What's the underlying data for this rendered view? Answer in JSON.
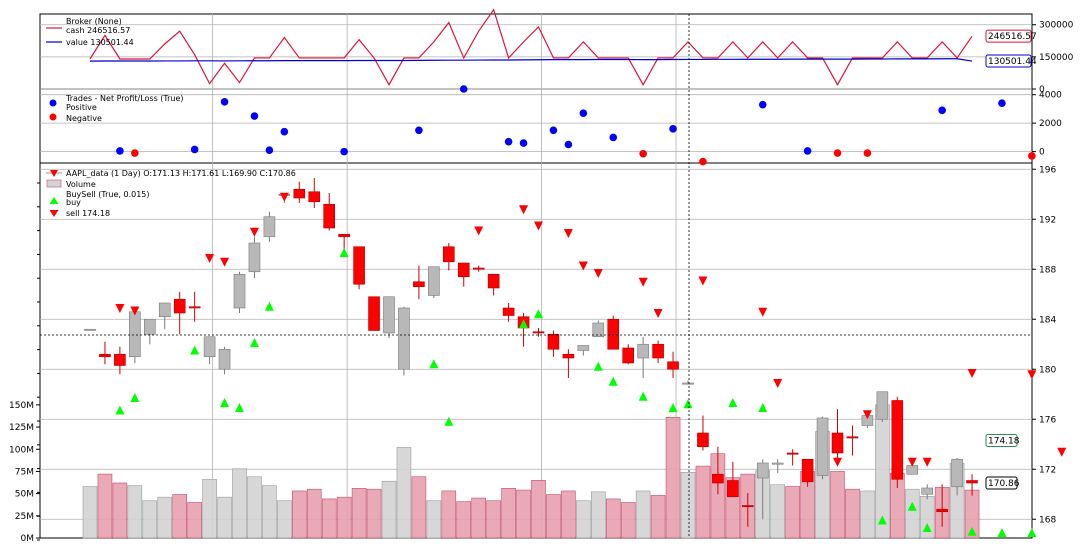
{
  "chart_data": [
    {
      "type": "line",
      "panel": "broker",
      "legend": {
        "title": "Broker (None)",
        "entries": [
          "cash 246516.57",
          "value 130501.44"
        ]
      },
      "ylim": [
        0,
        350000
      ],
      "yticks": [
        0,
        150000,
        300000
      ],
      "ytick_labels": [
        "0",
        "150000",
        "300000"
      ],
      "series": [
        {
          "name": "cash",
          "color": "#dc143c",
          "values": [
            140000,
            250000,
            140000,
            140000,
            140000,
            210000,
            270000,
            160000,
            25000,
            120000,
            30000,
            145000,
            145000,
            240000,
            145000,
            145000,
            145000,
            145000,
            230000,
            145000,
            20000,
            145000,
            145000,
            220000,
            310000,
            145000,
            270000,
            370000,
            145000,
            220000,
            290000,
            145000,
            145000,
            220000,
            145000,
            145000,
            145000,
            20000,
            145000,
            145000,
            220000,
            145000,
            145000,
            220000,
            145000,
            220000,
            145000,
            220000,
            145000,
            145000,
            20000,
            145000,
            145000,
            145000,
            220000,
            145000,
            145000,
            220000,
            145000,
            246516.57
          ]
        },
        {
          "name": "value",
          "color": "#0000cd",
          "values": [
            130000,
            130500,
            130500,
            130500,
            130500,
            131000,
            131000,
            131500,
            131500,
            131000,
            131500,
            132000,
            132000,
            132500,
            132500,
            132500,
            132500,
            132500,
            133000,
            133000,
            133000,
            133000,
            133500,
            134000,
            134500,
            134500,
            135000,
            135500,
            135500,
            136000,
            136500,
            137000,
            137000,
            137000,
            137500,
            137500,
            137500,
            137000,
            137000,
            137500,
            138000,
            138000,
            138500,
            138500,
            139000,
            139000,
            139000,
            139500,
            139500,
            139500,
            139500,
            139500,
            140000,
            140000,
            140500,
            140500,
            140500,
            141000,
            141000,
            130501.44
          ]
        }
      ],
      "last_labels": [
        "246516.57",
        "130501.44"
      ]
    },
    {
      "type": "scatter",
      "panel": "trades",
      "legend": {
        "title": "Trades - Net Profit/Loss (True)",
        "entries": [
          "Positive",
          "Negative"
        ]
      },
      "ylim": [
        -800,
        4400
      ],
      "yticks": [
        0,
        2000,
        4000
      ],
      "ytick_labels": [
        "0",
        "2000",
        "4000"
      ],
      "positive": [
        [
          2,
          50
        ],
        [
          7,
          150
        ],
        [
          9,
          3500
        ],
        [
          11,
          2500
        ],
        [
          12,
          100
        ],
        [
          13,
          1400
        ],
        [
          17,
          0
        ],
        [
          22,
          1500
        ],
        [
          25,
          4400
        ],
        [
          28,
          700
        ],
        [
          29,
          600
        ],
        [
          31,
          1500
        ],
        [
          32,
          500
        ],
        [
          33,
          2700
        ],
        [
          35,
          1000
        ],
        [
          39,
          1600
        ],
        [
          45,
          3300
        ],
        [
          48,
          50
        ],
        [
          57,
          2900
        ],
        [
          61,
          3400
        ]
      ],
      "negative": [
        [
          3,
          -100
        ],
        [
          37,
          -150
        ],
        [
          41,
          -700
        ],
        [
          50,
          -100
        ],
        [
          52,
          -100
        ],
        [
          63,
          -300
        ]
      ]
    },
    {
      "type": "candlestick",
      "panel": "price",
      "legend": {
        "entries": [
          "AAPL_data (1 Day) O:171.13 H:171.61 L:169.90 C:170.86",
          "Volume",
          "BuySell (True, 0.015)",
          "buy",
          "sell 174.18"
        ]
      },
      "ylim": [
        166.5,
        196.5
      ],
      "yticks": [
        168,
        172,
        176,
        180,
        184,
        188,
        192,
        196
      ],
      "ytick_labels": [
        "168",
        "172",
        "176",
        "180",
        "184",
        "188",
        "192",
        "196"
      ],
      "volume_ylim": [
        0,
        160000000
      ],
      "volume_ticks": [
        0,
        25000000,
        50000000,
        75000000,
        100000000,
        125000000,
        150000000
      ],
      "volume_tick_labels": [
        "0M",
        "25M",
        "50M",
        "75M",
        "100M",
        "125M",
        "150M"
      ],
      "ohlcv": [
        [
          183.2,
          183.2,
          183.2,
          183.2,
          58
        ],
        [
          181.2,
          182.2,
          180.4,
          181.0,
          72
        ],
        [
          181.2,
          181.8,
          179.6,
          180.3,
          62
        ],
        [
          181.0,
          184.6,
          180.5,
          184.6,
          59
        ],
        [
          182.8,
          184.0,
          182.0,
          184.0,
          42
        ],
        [
          184.2,
          185.3,
          183.2,
          185.3,
          46
        ],
        [
          185.6,
          186.2,
          182.8,
          184.5,
          49
        ],
        [
          185.0,
          186.2,
          183.8,
          184.9,
          40
        ],
        [
          181.0,
          182.6,
          180.4,
          182.6,
          66
        ],
        [
          180.0,
          181.8,
          179.6,
          181.6,
          46
        ],
        [
          184.9,
          187.8,
          184.5,
          187.6,
          78
        ],
        [
          187.8,
          190.6,
          187.3,
          190.1,
          69
        ],
        [
          190.6,
          192.6,
          190.2,
          192.2,
          59
        ],
        [
          193.9,
          194.0,
          193.3,
          194.0,
          42
        ],
        [
          194.4,
          195.0,
          193.3,
          193.7,
          53
        ],
        [
          194.2,
          195.3,
          192.9,
          193.4,
          55
        ],
        [
          193.2,
          194.1,
          191.1,
          191.3,
          44
        ],
        [
          190.8,
          190.8,
          189.1,
          190.6,
          46
        ],
        [
          189.8,
          189.8,
          186.4,
          186.8,
          56
        ],
        [
          185.8,
          185.8,
          183.1,
          183.1,
          55
        ],
        [
          182.9,
          185.8,
          182.5,
          185.8,
          64
        ],
        [
          180.0,
          185.0,
          179.5,
          184.9,
          102
        ],
        [
          187.0,
          188.3,
          185.6,
          186.6,
          69
        ],
        [
          185.9,
          188.2,
          185.7,
          188.2,
          42
        ],
        [
          189.8,
          190.1,
          187.9,
          188.6,
          53
        ],
        [
          188.5,
          188.5,
          186.6,
          187.4,
          41
        ],
        [
          188.1,
          188.3,
          187.8,
          188.0,
          45
        ],
        [
          187.6,
          187.6,
          185.9,
          186.5,
          42
        ],
        [
          184.9,
          185.3,
          183.8,
          184.3,
          56
        ],
        [
          184.2,
          184.5,
          181.8,
          183.3,
          54
        ],
        [
          183.0,
          183.3,
          182.6,
          182.9,
          65
        ],
        [
          182.8,
          183.1,
          181.0,
          181.6,
          49
        ],
        [
          181.2,
          181.6,
          179.3,
          180.9,
          53
        ],
        [
          181.5,
          181.8,
          181.1,
          181.9,
          42
        ],
        [
          182.6,
          183.9,
          182.6,
          183.7,
          52
        ],
        [
          184.0,
          184.3,
          181.6,
          181.6,
          44
        ],
        [
          181.7,
          182.0,
          180.4,
          180.5,
          40
        ],
        [
          180.9,
          182.6,
          179.3,
          182.0,
          53
        ],
        [
          182.0,
          182.3,
          180.5,
          180.9,
          48
        ],
        [
          180.6,
          181.4,
          179.3,
          180.0,
          136
        ],
        [
          178.9,
          179.1,
          178.9,
          178.9,
          74
        ],
        [
          174.9,
          176.3,
          173.5,
          173.8,
          81
        ],
        [
          171.6,
          173.8,
          170.0,
          170.9,
          95
        ],
        [
          171.1,
          172.6,
          169.9,
          169.8,
          68
        ],
        [
          169.1,
          170.1,
          167.4,
          169.0,
          72
        ],
        [
          171.3,
          172.8,
          168.0,
          172.5,
          76
        ],
        [
          172.4,
          172.8,
          171.7,
          172.5,
          60
        ],
        [
          173.3,
          173.6,
          172.3,
          173.2,
          58
        ],
        [
          172.8,
          172.8,
          170.6,
          171.0,
          75
        ],
        [
          171.5,
          176.2,
          171.2,
          176.1,
          120
        ],
        [
          174.9,
          176.8,
          172.8,
          173.3,
          75
        ],
        [
          174.6,
          175.5,
          173.1,
          174.5,
          55
        ],
        [
          175.5,
          176.4,
          175.3,
          176.3,
          53
        ],
        [
          176.0,
          178.2,
          175.8,
          178.2,
          150
        ],
        [
          177.5,
          177.8,
          170.5,
          171.2,
          73
        ],
        [
          171.6,
          172.8,
          171.6,
          172.3,
          55
        ],
        [
          170.0,
          170.8,
          169.6,
          170.5,
          47
        ],
        [
          168.8,
          170.8,
          167.4,
          168.6,
          57
        ],
        [
          170.6,
          172.9,
          169.9,
          172.8,
          84
        ],
        [
          171.1,
          171.6,
          169.9,
          170.9,
          54
        ]
      ],
      "buy_signals": [
        [
          2,
          176.7
        ],
        [
          3,
          177.7
        ],
        [
          7,
          181.5
        ],
        [
          9,
          177.3
        ],
        [
          10,
          176.9
        ],
        [
          11,
          182.1
        ],
        [
          12,
          185.0
        ],
        [
          17,
          189.3
        ],
        [
          23,
          180.4
        ],
        [
          24,
          175.8
        ],
        [
          29,
          183.6
        ],
        [
          30,
          184.4
        ],
        [
          34,
          180.2
        ],
        [
          35,
          179.0
        ],
        [
          37,
          177.8
        ],
        [
          39,
          176.9
        ],
        [
          40,
          177.2
        ],
        [
          43,
          177.3
        ],
        [
          45,
          176.9
        ],
        [
          48,
          164.8
        ],
        [
          53,
          167.9
        ],
        [
          55,
          169.0
        ],
        [
          56,
          167.3
        ],
        [
          59,
          167.0
        ],
        [
          61,
          166.9
        ],
        [
          63,
          166.9
        ]
      ],
      "sell_signals": [
        [
          2,
          184.9
        ],
        [
          3,
          184.7
        ],
        [
          8,
          188.9
        ],
        [
          9,
          188.6
        ],
        [
          11,
          191.0
        ],
        [
          13,
          193.8
        ],
        [
          24,
          188.9
        ],
        [
          26,
          191.1
        ],
        [
          29,
          192.8
        ],
        [
          30,
          191.5
        ],
        [
          32,
          190.9
        ],
        [
          33,
          188.3
        ],
        [
          34,
          187.7
        ],
        [
          37,
          187.0
        ],
        [
          38,
          184.5
        ],
        [
          41,
          187.1
        ],
        [
          45,
          184.6
        ],
        [
          46,
          178.9
        ],
        [
          50,
          172.6
        ],
        [
          52,
          176.4
        ],
        [
          54,
          175.3
        ],
        [
          55,
          172.6
        ],
        [
          56,
          172.6
        ],
        [
          59,
          179.7
        ],
        [
          63,
          179.6
        ],
        [
          65,
          173.4
        ],
        [
          67,
          174.3
        ]
      ],
      "last_labels": [
        "174.18",
        "170.86"
      ]
    }
  ]
}
